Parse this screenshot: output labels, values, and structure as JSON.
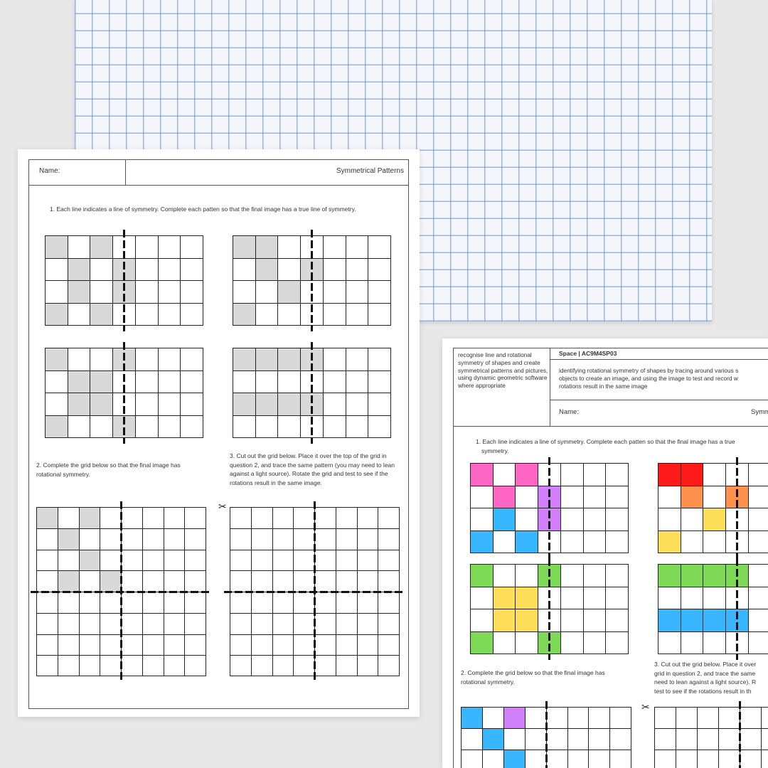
{
  "colors": {
    "gray": "#d9d9d9",
    "pink": "#ff66c4",
    "purple": "#d17ffb",
    "blue": "#38b6ff",
    "red": "#ff1a1a",
    "orange": "#ff914d",
    "yellow": "#ffde59",
    "green": "#7ed957",
    "graph_paper_lines": "#8fb8ec"
  },
  "left_sheet": {
    "name_label": "Name:",
    "title": "Symmetrical Patterns",
    "q1": "1. Each line indicates a line of symmetry. Complete each patten so that the final image has a true line of symmetry.",
    "q2": "2. Complete the grid below so that the final image has rotational symmetry.",
    "q3": "3. Cut out the grid below. Place it over the top of the grid in question 2, and trace the same pattern (you may need to lean against a light source). Rotate the grid and test to see if the rotations result in the same image.",
    "scissors_icon": "scissors",
    "grids": [
      {
        "rows": 4,
        "cols": 7,
        "fills": [
          [
            0,
            0,
            "gray"
          ],
          [
            0,
            2,
            "gray"
          ],
          [
            1,
            1,
            "gray"
          ],
          [
            1,
            3,
            "gray"
          ],
          [
            2,
            1,
            "gray"
          ],
          [
            2,
            3,
            "gray"
          ],
          [
            3,
            0,
            "gray"
          ],
          [
            3,
            2,
            "gray"
          ]
        ]
      },
      {
        "rows": 4,
        "cols": 7,
        "fills": [
          [
            0,
            0,
            "gray"
          ],
          [
            0,
            1,
            "gray"
          ],
          [
            1,
            1,
            "gray"
          ],
          [
            1,
            3,
            "gray"
          ],
          [
            2,
            2,
            "gray"
          ],
          [
            3,
            0,
            "gray"
          ]
        ]
      },
      {
        "rows": 4,
        "cols": 7,
        "fills": [
          [
            0,
            0,
            "gray"
          ],
          [
            0,
            3,
            "gray"
          ],
          [
            1,
            1,
            "gray"
          ],
          [
            1,
            2,
            "gray"
          ],
          [
            2,
            1,
            "gray"
          ],
          [
            2,
            2,
            "gray"
          ],
          [
            3,
            0,
            "gray"
          ],
          [
            3,
            3,
            "gray"
          ]
        ]
      },
      {
        "rows": 4,
        "cols": 7,
        "fills": [
          [
            0,
            0,
            "gray"
          ],
          [
            0,
            1,
            "gray"
          ],
          [
            0,
            2,
            "gray"
          ],
          [
            0,
            3,
            "gray"
          ],
          [
            2,
            0,
            "gray"
          ],
          [
            2,
            1,
            "gray"
          ],
          [
            2,
            2,
            "gray"
          ],
          [
            2,
            3,
            "gray"
          ]
        ]
      },
      {
        "rows": 8,
        "cols": 8,
        "fills": [
          [
            0,
            0,
            "gray"
          ],
          [
            0,
            2,
            "gray"
          ],
          [
            1,
            1,
            "gray"
          ],
          [
            2,
            2,
            "gray"
          ],
          [
            3,
            1,
            "gray"
          ],
          [
            3,
            3,
            "gray"
          ]
        ]
      },
      {
        "rows": 8,
        "cols": 8,
        "fills": []
      }
    ]
  },
  "right_sheet": {
    "curriculum_description": "recognise line and rotational symmetry of shapes and create symmetrical patterns and pictures, using dynamic geometric software where appropriate",
    "code": "Space | AC9M4SP03",
    "elaboration_lines": [
      "identifying rotational symmetry of shapes by tracing around various s",
      "objects to create an image, and using the image to test and record w",
      "rotations result in the same image"
    ],
    "name_label": "Name:",
    "title_partial": "Symm",
    "q1_lines": [
      "1. Each line indicates a line of symmetry. Complete each patten so that the final image has a true",
      "symmetry."
    ],
    "q2": "2. Complete the grid below so that the final image has rotational symmetry.",
    "q3_lines": [
      "3. Cut out the grid below. Place it over",
      "grid in question 2, and trace the same",
      "need to lean against a light source). R",
      "test to see if the rotations result in th"
    ],
    "scissors_icon": "scissors",
    "grids": [
      {
        "rows": 4,
        "cols": 7,
        "fills": [
          [
            0,
            0,
            "pink"
          ],
          [
            0,
            2,
            "pink"
          ],
          [
            1,
            1,
            "pink"
          ],
          [
            1,
            3,
            "purple"
          ],
          [
            2,
            1,
            "blue"
          ],
          [
            2,
            3,
            "purple"
          ],
          [
            3,
            0,
            "blue"
          ],
          [
            3,
            2,
            "blue"
          ]
        ]
      },
      {
        "rows": 4,
        "cols": 7,
        "fills": [
          [
            0,
            0,
            "red"
          ],
          [
            0,
            1,
            "red"
          ],
          [
            1,
            1,
            "orange"
          ],
          [
            1,
            3,
            "orange"
          ],
          [
            2,
            2,
            "yellow"
          ],
          [
            3,
            0,
            "yellow"
          ]
        ]
      },
      {
        "rows": 4,
        "cols": 7,
        "fills": [
          [
            0,
            0,
            "green"
          ],
          [
            0,
            3,
            "green"
          ],
          [
            1,
            1,
            "yellow"
          ],
          [
            1,
            2,
            "yellow"
          ],
          [
            2,
            1,
            "yellow"
          ],
          [
            2,
            2,
            "yellow"
          ],
          [
            3,
            0,
            "green"
          ],
          [
            3,
            3,
            "green"
          ]
        ]
      },
      {
        "rows": 4,
        "cols": 7,
        "fills": [
          [
            0,
            0,
            "green"
          ],
          [
            0,
            1,
            "green"
          ],
          [
            0,
            2,
            "green"
          ],
          [
            0,
            3,
            "green"
          ],
          [
            2,
            0,
            "blue"
          ],
          [
            2,
            1,
            "blue"
          ],
          [
            2,
            2,
            "blue"
          ],
          [
            2,
            3,
            "blue"
          ]
        ]
      },
      {
        "rows": 8,
        "cols": 8,
        "fills": [
          [
            0,
            0,
            "blue"
          ],
          [
            0,
            2,
            "purple"
          ],
          [
            1,
            1,
            "blue"
          ],
          [
            2,
            2,
            "blue"
          ]
        ]
      },
      {
        "rows": 8,
        "cols": 8,
        "fills": []
      }
    ]
  }
}
